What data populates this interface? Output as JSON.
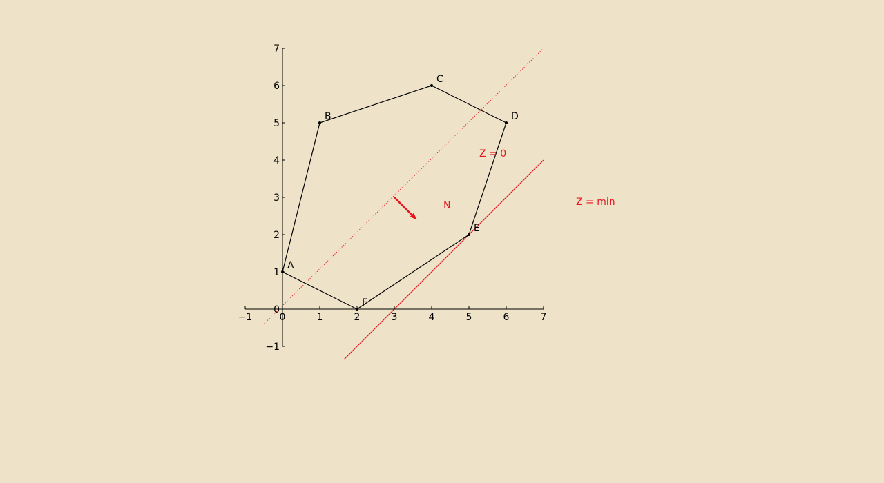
{
  "colors": {
    "background": "#EEE3C9",
    "axis": "#000000",
    "polygon": "#000000",
    "accent": "#E8151F"
  },
  "axes": {
    "x_ticks": [
      "−1",
      "0",
      "1",
      "2",
      "3",
      "4",
      "5",
      "6",
      "7"
    ],
    "y_ticks": [
      "−1",
      "0",
      "1",
      "2",
      "3",
      "4",
      "5",
      "6",
      "7"
    ],
    "x_range": [
      -1,
      7
    ],
    "y_range": [
      -1,
      7
    ]
  },
  "polygon": {
    "vertices": [
      {
        "label": "A",
        "x": 0,
        "y": 1
      },
      {
        "label": "B",
        "x": 1,
        "y": 5
      },
      {
        "label": "C",
        "x": 4,
        "y": 6
      },
      {
        "label": "D",
        "x": 6,
        "y": 5
      },
      {
        "label": "E",
        "x": 5,
        "y": 2
      },
      {
        "label": "F",
        "x": 2,
        "y": 0
      }
    ]
  },
  "lines": {
    "zero": {
      "label": "Z = 0",
      "from": [
        -0.5,
        -0.4
      ],
      "to": [
        7,
        7
      ]
    },
    "min": {
      "label": "Z = min",
      "from": [
        1.65,
        -1.35
      ],
      "to": [
        7,
        4
      ]
    }
  },
  "normal": {
    "label": "N",
    "from": [
      3,
      3
    ],
    "to": [
      3.6,
      2.4
    ]
  }
}
